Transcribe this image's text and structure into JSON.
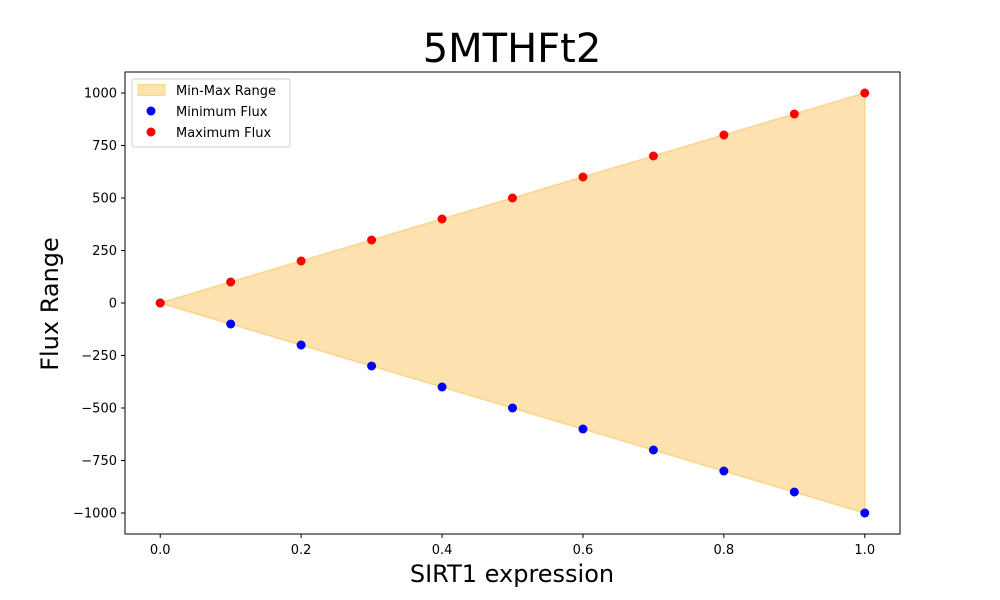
{
  "chart_data": {
    "type": "scatter",
    "title": "5MTHFt2",
    "xlabel": "SIRT1 expression",
    "ylabel": "Flux Range",
    "xlim": [
      -0.05,
      1.05
    ],
    "ylim": [
      -1100,
      1100
    ],
    "xticks": [
      0.0,
      0.2,
      0.4,
      0.6,
      0.8,
      1.0
    ],
    "xtick_labels": [
      "0.0",
      "0.2",
      "0.4",
      "0.6",
      "0.8",
      "1.0"
    ],
    "yticks": [
      1000,
      750,
      500,
      250,
      0,
      -250,
      -500,
      -750,
      -1000
    ],
    "ytick_labels": [
      "1000",
      "750",
      "500",
      "250",
      "0",
      "−250",
      "−500",
      "−750",
      "−1000"
    ],
    "grid": false,
    "legend_position": "top-left",
    "x": [
      0.0,
      0.1,
      0.2,
      0.3,
      0.4,
      0.5,
      0.6,
      0.7,
      0.8,
      0.9,
      1.0
    ],
    "series": [
      {
        "name": "Min-Max Range",
        "kind": "fill_between",
        "color": "#fde2b0",
        "edge_color": "#fbd48e"
      },
      {
        "name": "Minimum Flux",
        "kind": "scatter",
        "color": "#0000ff",
        "values": [
          0,
          -100,
          -200,
          -300,
          -400,
          -500,
          -600,
          -700,
          -800,
          -900,
          -1000
        ]
      },
      {
        "name": "Maximum Flux",
        "kind": "scatter",
        "color": "#ff0000",
        "values": [
          0,
          100,
          200,
          300,
          400,
          500,
          600,
          700,
          800,
          900,
          1000
        ]
      }
    ]
  }
}
